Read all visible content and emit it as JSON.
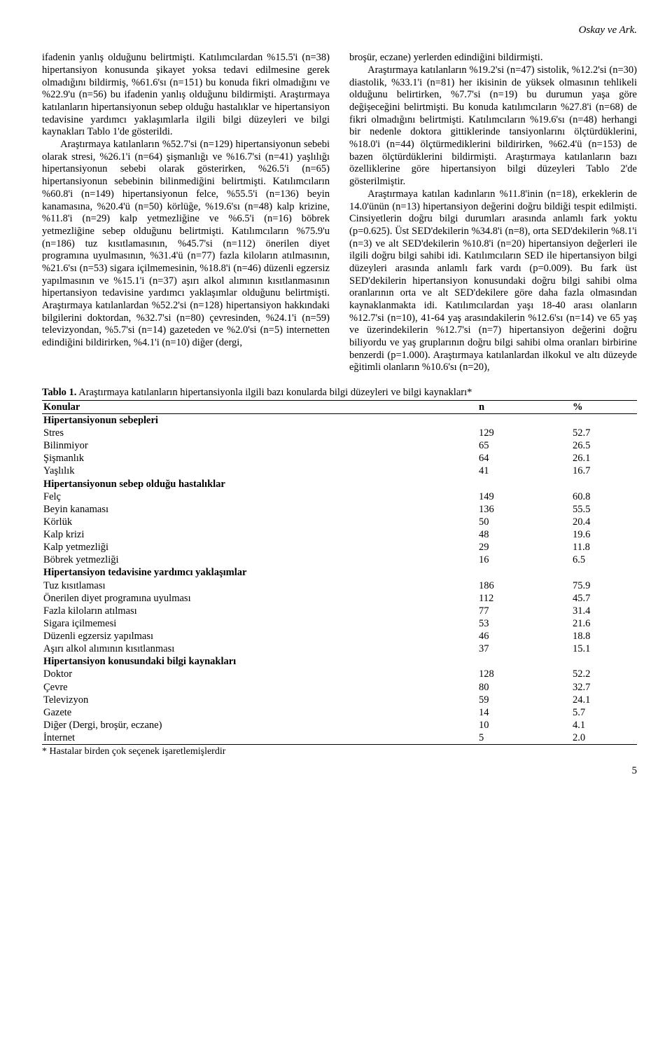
{
  "header": {
    "running": "Oskay ve Ark."
  },
  "col1": {
    "p1": "ifadenin yanlış olduğunu belirtmişti. Katılımcılardan %15.5'i (n=38) hipertansiyon konusunda şikayet yoksa tedavi edilmesine gerek olmadığını bildirmiş, %61.6'sı (n=151) bu konuda fikri olmadığını ve %22.9'u (n=56) bu ifadenin yanlış olduğunu bildirmişti. Araştırmaya katılanların hipertansiyonun sebep olduğu hastalıklar ve hipertansiyon tedavisine yardımcı yaklaşımlarla ilgili bilgi düzeyleri ve bilgi kaynakları Tablo 1'de gösterildi.",
    "p2": "Araştırmaya katılanların %52.7'si (n=129) hipertansiyonun sebebi olarak stresi, %26.1'i (n=64) şişmanlığı ve %16.7'si (n=41) yaşlılığı hipertansiyonun sebebi olarak gösterirken, %26.5'i (n=65) hipertansiyonun sebebinin bilinmediğini belirtmişti. Katılımcıların %60.8'i (n=149) hipertansiyonun felce, %55.5'i (n=136) beyin kanamasına, %20.4'ü (n=50) körlüğe, %19.6'sı (n=48) kalp krizine, %11.8'i (n=29) kalp yetmezliğine ve %6.5'i (n=16) böbrek yetmezliğine sebep olduğunu belirtmişti. Katılımcıların %75.9'u (n=186) tuz kısıtlamasının, %45.7'si (n=112) önerilen diyet programına uyulmasının, %31.4'ü (n=77) fazla kiloların atılmasının, %21.6'sı (n=53) sigara içilmemesinin, %18.8'i (n=46) düzenli egzersiz yapılmasının ve %15.1'i (n=37) aşırı alkol alımının kısıtlanmasının hipertansiyon tedavisine yardımcı yaklaşımlar olduğunu belirtmişti. Araştırmaya katılanlardan %52.2'si (n=128) hipertansiyon hakkındaki bilgilerini doktordan, %32.7'si (n=80) çevresinden, %24.1'i (n=59) televizyondan, %5.7'si (n=14) gazeteden ve %2.0'si (n=5) internetten edindiğini bildirirken, %4.1'i (n=10) diğer (dergi,"
  },
  "col2": {
    "p1": "broşür, eczane) yerlerden edindiğini bildirmişti.",
    "p2": "Araştırmaya katılanların %19.2'si (n=47) sistolik, %12.2'si (n=30) diastolik, %33.1'i (n=81) her ikisinin de yüksek olmasının tehlikeli olduğunu belirtirken, %7.7'si (n=19) bu durumun yaşa göre değişeceğini belirtmişti. Bu konuda katılımcıların %27.8'i (n=68) de fikri olmadığını belirtmişti. Katılımcıların %19.6'sı (n=48) herhangi bir nedenle doktora gittiklerinde tansiyonlarını ölçtürdüklerini, %18.0'i (n=44) ölçtürmediklerini bildirirken, %62.4'ü (n=153) de bazen ölçtürdüklerini bildirmişti. Araştırmaya katılanların bazı özelliklerine göre hipertansiyon bilgi düzeyleri Tablo 2'de gösterilmiştir.",
    "p3": "Araştırmaya katılan kadınların %11.8'inin (n=18), erkeklerin de 14.0'ünün (n=13) hipertansiyon değerini doğru bildiği tespit edilmişti. Cinsiyetlerin doğru bilgi durumları arasında anlamlı fark yoktu (p=0.625). Üst SED'dekilerin %34.8'i (n=8), orta SED'dekilerin %8.1'i (n=3) ve alt SED'dekilerin %10.8'i (n=20) hipertansiyon değerleri ile ilgili doğru bilgi sahibi idi. Katılımcıların SED ile hipertansiyon bilgi düzeyleri arasında anlamlı fark vardı (p=0.009). Bu fark üst SED'dekilerin hipertansiyon konusundaki doğru bilgi sahibi olma oranlarının orta ve alt SED'dekilere göre daha fazla olmasından kaynaklanmakta idi. Katılımcılardan yaşı 18-40 arası olanların %12.7'si (n=10), 41-64 yaş arasındakilerin %12.6'sı (n=14) ve 65 yaş ve üzerindekilerin %12.7'si (n=7) hipertansiyon değerini doğru biliyordu ve yaş gruplarının doğru bilgi sahibi olma oranları birbirine benzerdi (p=1.000). Araştırmaya katılanlardan ilkokul ve altı düzeyde eğitimli olanların %10.6'sı (n=20),"
  },
  "table": {
    "caption_label": "Tablo 1.",
    "caption_text": " Araştırmaya katılanların hipertansiyonla ilgili bazı konularda bilgi düzeyleri ve bilgi kaynakları*",
    "cols": {
      "c1": "Konular",
      "c2": "n",
      "c3": "%"
    },
    "sec1": "Hipertansiyonun sebepleri",
    "r1": {
      "l": "Stres",
      "n": "129",
      "p": "52.7"
    },
    "r2": {
      "l": "Bilinmiyor",
      "n": "65",
      "p": "26.5"
    },
    "r3": {
      "l": "Şişmanlık",
      "n": "64",
      "p": "26.1"
    },
    "r4": {
      "l": "Yaşlılık",
      "n": "41",
      "p": "16.7"
    },
    "sec2": "Hipertansiyonun sebep olduğu hastalıklar",
    "r5": {
      "l": "Felç",
      "n": "149",
      "p": "60.8"
    },
    "r6": {
      "l": "Beyin kanaması",
      "n": "136",
      "p": "55.5"
    },
    "r7": {
      "l": "Körlük",
      "n": "50",
      "p": "20.4"
    },
    "r8": {
      "l": "Kalp krizi",
      "n": "48",
      "p": "19.6"
    },
    "r9": {
      "l": "Kalp yetmezliği",
      "n": "29",
      "p": "11.8"
    },
    "r10": {
      "l": "Böbrek yetmezliği",
      "n": "16",
      "p": "6.5"
    },
    "sec3": "Hipertansiyon tedavisine yardımcı yaklaşımlar",
    "r11": {
      "l": "Tuz kısıtlaması",
      "n": "186",
      "p": "75.9"
    },
    "r12": {
      "l": "Önerilen diyet programına uyulması",
      "n": "112",
      "p": "45.7"
    },
    "r13": {
      "l": "Fazla kiloların atılması",
      "n": "77",
      "p": "31.4"
    },
    "r14": {
      "l": "Sigara içilmemesi",
      "n": "53",
      "p": "21.6"
    },
    "r15": {
      "l": "Düzenli egzersiz yapılması",
      "n": "46",
      "p": "18.8"
    },
    "r16": {
      "l": "Aşırı alkol alımının kısıtlanması",
      "n": "37",
      "p": "15.1"
    },
    "sec4": "Hipertansiyon konusundaki bilgi kaynakları",
    "r17": {
      "l": "Doktor",
      "n": "128",
      "p": "52.2"
    },
    "r18": {
      "l": "Çevre",
      "n": "80",
      "p": "32.7"
    },
    "r19": {
      "l": "Televizyon",
      "n": "59",
      "p": "24.1"
    },
    "r20": {
      "l": "Gazete",
      "n": "14",
      "p": "5.7"
    },
    "r21": {
      "l": "Diğer (Dergi, broşür, eczane)",
      "n": "10",
      "p": "4.1"
    },
    "r22": {
      "l": "İnternet",
      "n": "5",
      "p": "2.0"
    },
    "note": "* Hastalar birden çok seçenek işaretlemişlerdir"
  },
  "page": {
    "num": "5"
  }
}
